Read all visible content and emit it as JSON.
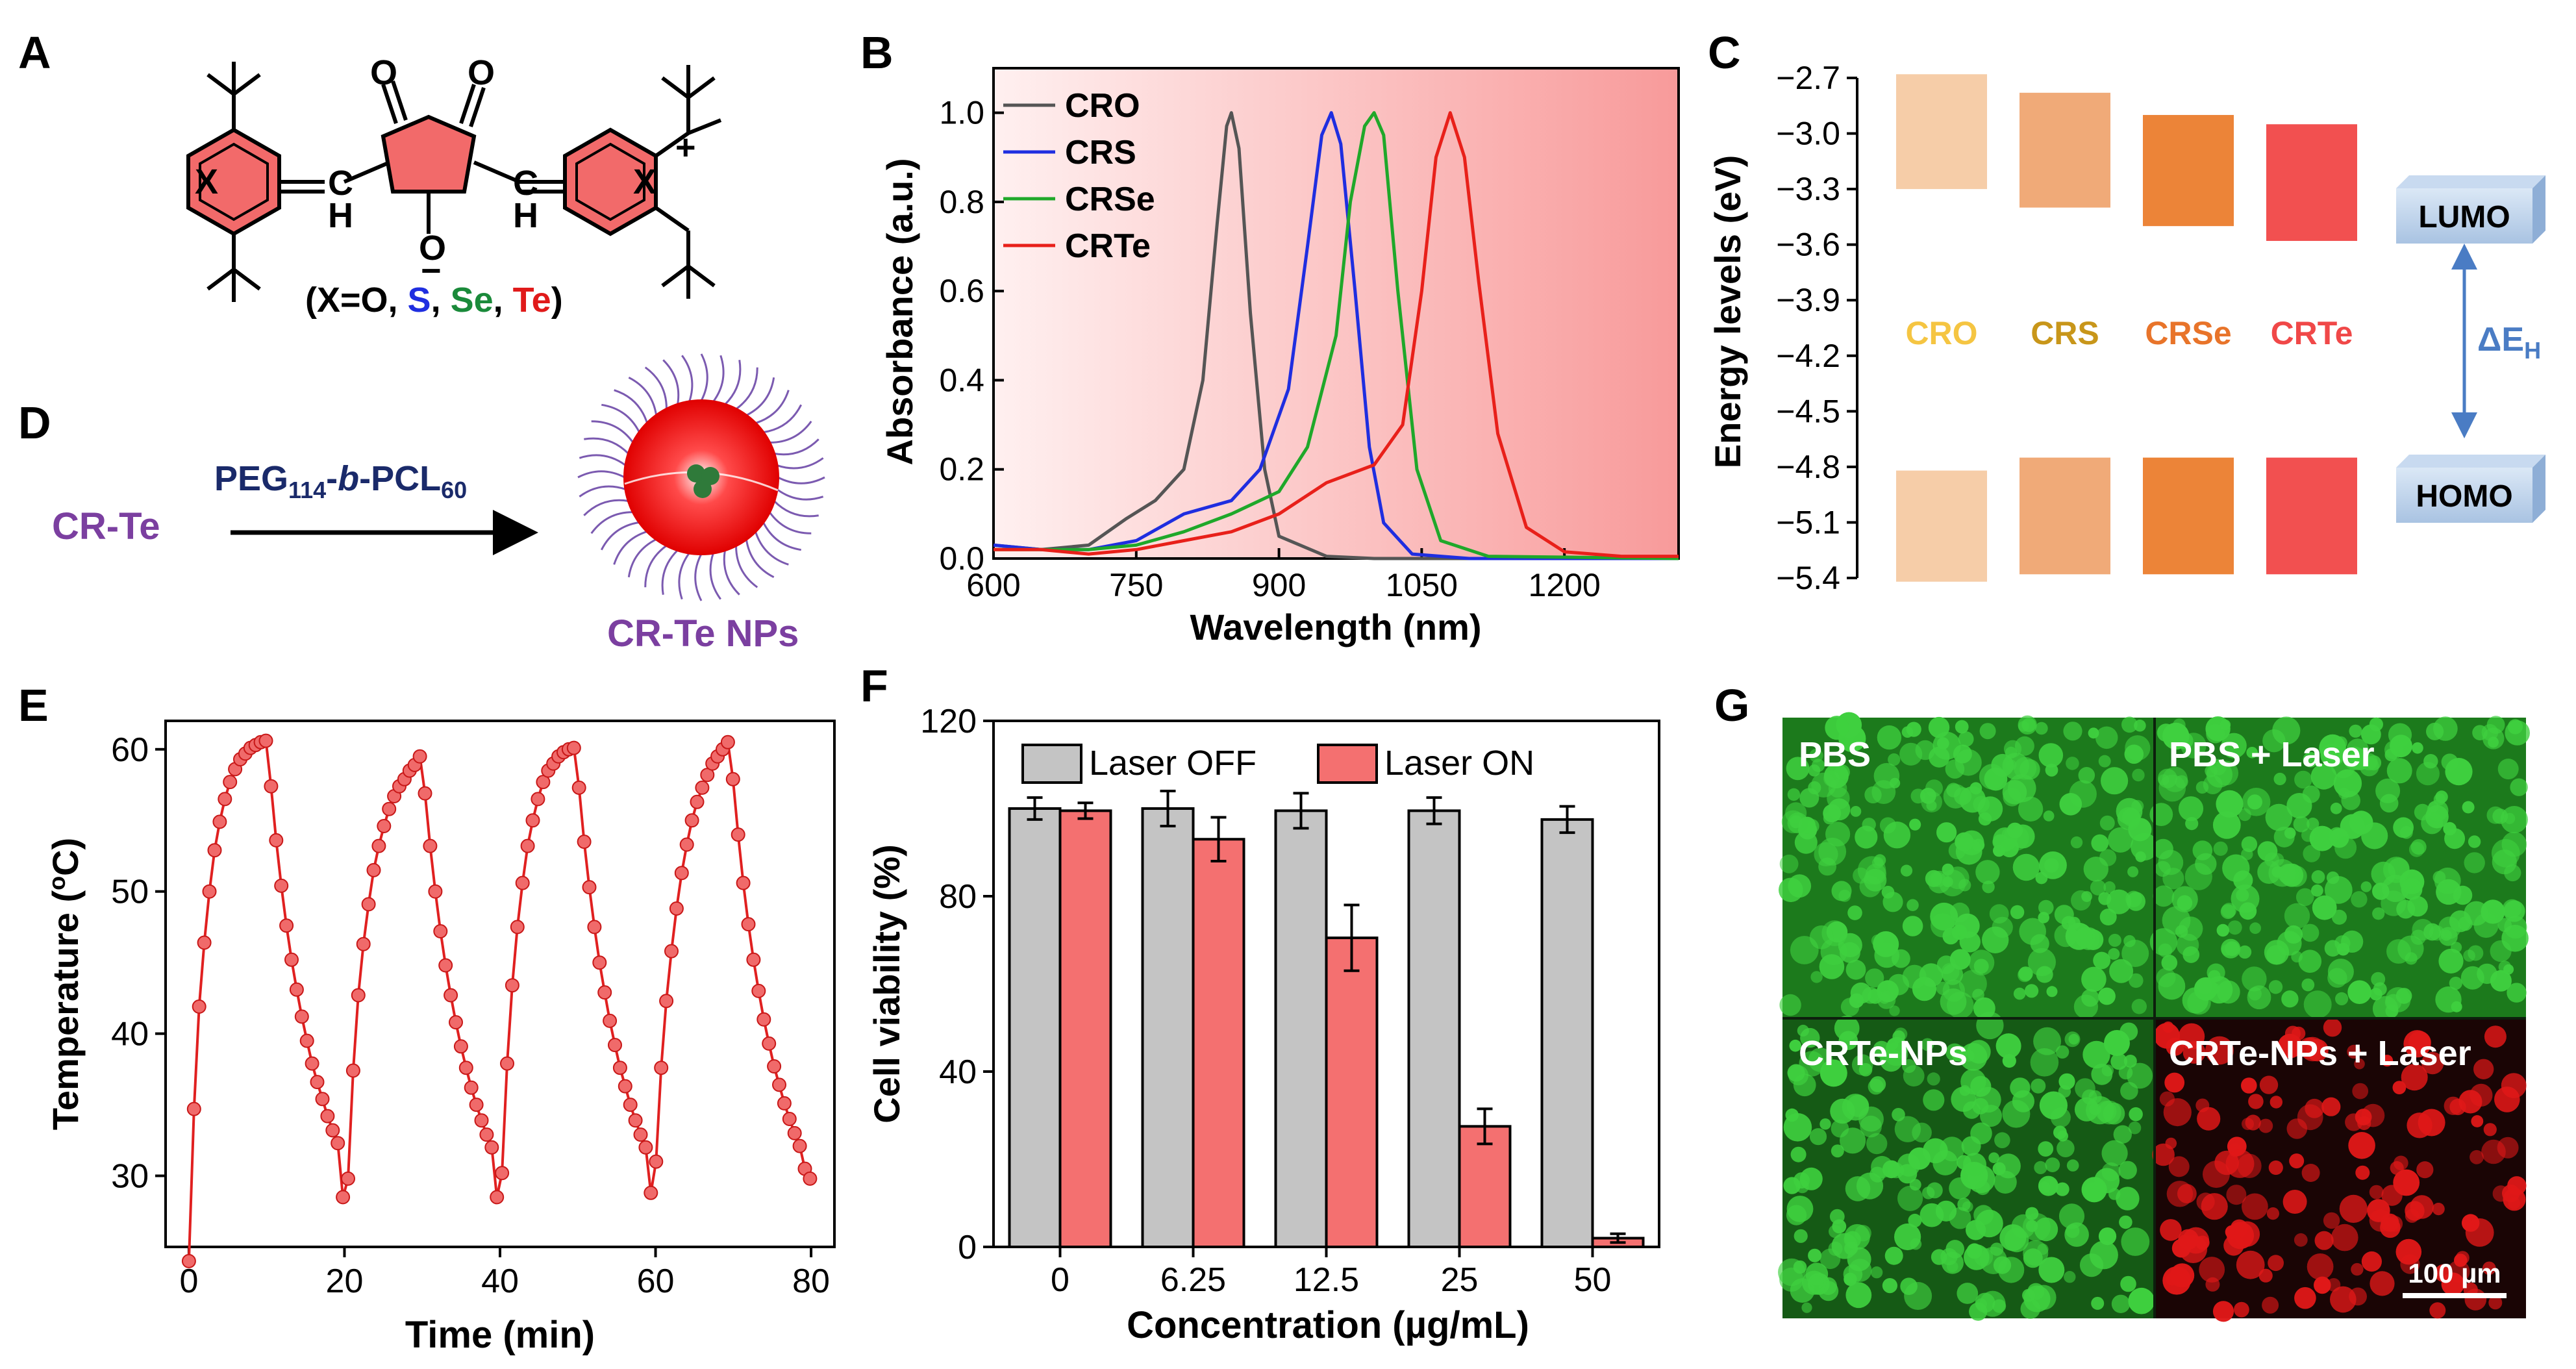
{
  "figure": {
    "panel_labels": [
      "A",
      "B",
      "C",
      "D",
      "E",
      "F",
      "G"
    ]
  },
  "panel_a": {
    "atom_X": "X",
    "atom_O": "O",
    "atom_H": "H",
    "atom_C": "C",
    "charge_plus": "+",
    "charge_minus": "−",
    "caption_open": "(X=O, ",
    "caption_S": "S",
    "caption_sep": ", ",
    "caption_Se": "Se",
    "caption_Te": "Te",
    "caption_close": ")",
    "colors": {
      "S": "#1f2ee0",
      "Se": "#1a8a3a",
      "Te": "#e01a1a"
    }
  },
  "panel_d": {
    "reactant": "CR-Te",
    "reagent_prefix": "PEG",
    "reagent_sub1": "114",
    "reagent_mid": "-",
    "reagent_b": "b",
    "reagent_mid2": "-PCL",
    "reagent_sub2": "60",
    "product": "CR-Te NPs",
    "colors": {
      "reactant": "#7b3fa0",
      "reagent": "#1a2a6a"
    }
  },
  "chart_data": [
    {
      "panel": "B",
      "type": "line",
      "title": "",
      "xlabel": "Wavelength (nm)",
      "ylabel": "Absorbance (a.u.)",
      "xlim": [
        600,
        1320
      ],
      "ylim": [
        0,
        1.1
      ],
      "xticks": [
        600,
        750,
        900,
        1050,
        1200
      ],
      "yticks": [
        0.0,
        0.2,
        0.4,
        0.6,
        0.8,
        1.0
      ],
      "ytick_labels": [
        "0.0",
        "0.2",
        "0.4",
        "0.6",
        "0.8",
        "1.0"
      ],
      "legend": "top-left",
      "series": [
        {
          "name": "CRO",
          "color": "#555555",
          "x": [
            600,
            650,
            700,
            740,
            770,
            800,
            820,
            835,
            845,
            850,
            858,
            870,
            885,
            900,
            950,
            1000,
            1100,
            1320
          ],
          "y": [
            0.03,
            0.02,
            0.03,
            0.09,
            0.13,
            0.2,
            0.4,
            0.75,
            0.97,
            1.0,
            0.92,
            0.55,
            0.2,
            0.05,
            0.005,
            0.0,
            0.0,
            0.0
          ]
        },
        {
          "name": "CRS",
          "color": "#1f2ee0",
          "x": [
            600,
            650,
            700,
            750,
            800,
            850,
            880,
            910,
            930,
            945,
            955,
            965,
            980,
            995,
            1010,
            1040,
            1100,
            1320
          ],
          "y": [
            0.03,
            0.02,
            0.02,
            0.04,
            0.1,
            0.13,
            0.2,
            0.38,
            0.7,
            0.95,
            1.0,
            0.93,
            0.6,
            0.25,
            0.08,
            0.01,
            0.0,
            0.0
          ]
        },
        {
          "name": "CRSe",
          "color": "#1fa82a",
          "x": [
            600,
            650,
            700,
            750,
            800,
            850,
            900,
            930,
            960,
            975,
            990,
            1000,
            1010,
            1025,
            1045,
            1070,
            1120,
            1320
          ],
          "y": [
            0.02,
            0.02,
            0.02,
            0.03,
            0.06,
            0.1,
            0.15,
            0.25,
            0.5,
            0.8,
            0.97,
            1.0,
            0.95,
            0.6,
            0.2,
            0.04,
            0.005,
            0.0
          ]
        },
        {
          "name": "CRTe",
          "color": "#e8201a",
          "x": [
            600,
            650,
            700,
            750,
            800,
            850,
            900,
            950,
            1000,
            1030,
            1050,
            1065,
            1080,
            1095,
            1110,
            1130,
            1160,
            1200,
            1260,
            1320
          ],
          "y": [
            0.02,
            0.02,
            0.01,
            0.02,
            0.04,
            0.06,
            0.1,
            0.17,
            0.21,
            0.3,
            0.6,
            0.9,
            1.0,
            0.9,
            0.62,
            0.28,
            0.07,
            0.015,
            0.005,
            0.005
          ]
        }
      ]
    },
    {
      "panel": "C",
      "type": "bar",
      "title": "",
      "xlabel": "",
      "ylabel": "Energy levels (eV)",
      "ylim": [
        -5.4,
        -2.7
      ],
      "yticks": [
        -2.7,
        -3.0,
        -3.3,
        -3.6,
        -3.9,
        -4.2,
        -4.5,
        -4.8,
        -5.1,
        -5.4
      ],
      "ytick_labels": [
        "−2.7",
        "−3.0",
        "−3.3",
        "−3.6",
        "−3.9",
        "−4.2",
        "−4.5",
        "−4.8",
        "−5.1",
        "−5.4"
      ],
      "categories": [
        "CRO",
        "CRS",
        "CRSe",
        "CRTe"
      ],
      "label_colors": [
        "#f5c542",
        "#c8961a",
        "#e8742a",
        "#f04848"
      ],
      "bar_colors": [
        "#f6cda8",
        "#f0aa78",
        "#ec8438",
        "#f25050"
      ],
      "lumo_ranges": [
        [
          -3.3,
          -2.68
        ],
        [
          -3.4,
          -2.78
        ],
        [
          -3.5,
          -2.9
        ],
        [
          -3.58,
          -2.95
        ]
      ],
      "homo_ranges": [
        [
          -5.42,
          -4.82
        ],
        [
          -5.38,
          -4.75
        ],
        [
          -5.38,
          -4.75
        ],
        [
          -5.38,
          -4.75
        ]
      ],
      "legend_labels": {
        "lumo": "LUMO",
        "homo": "HOMO",
        "gap": "ΔE",
        "gap_sub": "H"
      }
    },
    {
      "panel": "E",
      "type": "line",
      "title": "",
      "xlabel": "Time (min)",
      "ylabel": "Temperature (°C)",
      "ylabel_base": "Temperature (",
      "ylabel_sup": "o",
      "ylabel_tail": "C)",
      "xlim": [
        -3,
        83
      ],
      "ylim": [
        25,
        62
      ],
      "xticks": [
        0,
        20,
        40,
        60,
        80
      ],
      "yticks": [
        30,
        40,
        50,
        60
      ],
      "color": "#e02020",
      "x": [
        0,
        0.66,
        1.32,
        1.98,
        2.64,
        3.3,
        3.96,
        4.62,
        5.28,
        5.94,
        6.6,
        7.26,
        7.92,
        8.58,
        9.24,
        9.9,
        10.56,
        11.22,
        11.88,
        12.54,
        13.2,
        13.86,
        14.52,
        15.18,
        15.84,
        16.5,
        17.16,
        17.82,
        18.48,
        19.14,
        19.8,
        20.46,
        21.12,
        21.78,
        22.44,
        23.1,
        23.76,
        24.42,
        25.08,
        25.74,
        26.4,
        27.06,
        27.72,
        28.38,
        29.04,
        29.7,
        30.36,
        31.02,
        31.68,
        32.34,
        33,
        33.66,
        34.32,
        34.98,
        35.64,
        36.3,
        36.96,
        37.62,
        38.28,
        38.94,
        39.6,
        40.26,
        40.92,
        41.58,
        42.24,
        42.9,
        43.56,
        44.22,
        44.88,
        45.54,
        46.2,
        46.86,
        47.52,
        48.18,
        48.84,
        49.5,
        50.16,
        50.82,
        51.48,
        52.14,
        52.8,
        53.46,
        54.12,
        54.78,
        55.44,
        56.1,
        56.76,
        57.42,
        58.08,
        58.74,
        59.4,
        60.06,
        60.72,
        61.38,
        62.04,
        62.7,
        63.36,
        64.02,
        64.68,
        65.34,
        66,
        66.66,
        67.32,
        67.98,
        68.64,
        69.3,
        69.96,
        70.62,
        71.28,
        71.94,
        72.6,
        73.26,
        73.92,
        74.58,
        75.24,
        75.9,
        76.56,
        77.22,
        77.88,
        78.54,
        79.2,
        79.86
      ],
      "y": [
        24.0,
        34.7,
        41.9,
        46.4,
        50.0,
        52.9,
        54.9,
        56.5,
        57.7,
        58.6,
        59.3,
        59.7,
        60.1,
        60.3,
        60.5,
        60.6,
        57.4,
        53.6,
        50.4,
        47.6,
        45.2,
        43.1,
        41.2,
        39.5,
        37.9,
        36.6,
        35.4,
        34.2,
        33.2,
        32.3,
        28.5,
        29.8,
        37.4,
        42.7,
        46.3,
        49.1,
        51.5,
        53.2,
        54.6,
        55.8,
        56.7,
        57.4,
        57.9,
        58.5,
        58.9,
        59.5,
        56.9,
        53.2,
        50.0,
        47.2,
        44.8,
        42.7,
        40.8,
        39.1,
        37.6,
        36.2,
        35.0,
        33.9,
        32.9,
        32.0,
        28.5,
        30.2,
        37.9,
        43.4,
        47.5,
        50.6,
        53.2,
        55.0,
        56.5,
        57.7,
        58.5,
        59.0,
        59.5,
        59.8,
        60.0,
        60.1,
        57.3,
        53.5,
        50.3,
        47.5,
        45.0,
        42.9,
        40.9,
        39.2,
        37.6,
        36.3,
        35.0,
        33.9,
        32.9,
        32.0,
        28.8,
        31.0,
        37.6,
        42.3,
        45.8,
        48.8,
        51.3,
        53.3,
        55.0,
        56.3,
        57.3,
        58.2,
        59.0,
        59.5,
        60.0,
        60.5,
        57.9,
        54.0,
        50.6,
        47.7,
        45.2,
        43.0,
        41.0,
        39.3,
        37.7,
        36.4,
        35.1,
        34.0,
        33.0,
        32.1,
        30.5,
        29.8
      ]
    },
    {
      "panel": "F",
      "type": "bar",
      "title": "",
      "xlabel": "Concentration (µg/mL)",
      "ylabel": "Cell viability (%)",
      "ylim": [
        0,
        120
      ],
      "yticks": [
        0,
        40,
        80,
        120
      ],
      "categories": [
        "0",
        "6.25",
        "12.5",
        "25",
        "50"
      ],
      "legend": "top",
      "series": [
        {
          "name": "Laser OFF",
          "color": "#c4c4c4",
          "values": [
            100,
            100,
            99.5,
            99.5,
            97.5
          ],
          "errors": [
            2.5,
            4.0,
            4.0,
            3.0,
            3.0
          ]
        },
        {
          "name": "Laser ON",
          "color": "#f47070",
          "values": [
            99.5,
            93.0,
            70.5,
            27.5,
            2.0
          ],
          "errors": [
            1.8,
            5.0,
            7.5,
            4.0,
            1.0
          ]
        }
      ]
    }
  ],
  "panel_g": {
    "quadrants": [
      "PBS",
      "PBS + Laser",
      "CRTe-NPs",
      "CRTe-NPs + Laser"
    ],
    "scale_bar": "100 µm",
    "colors": {
      "live": "#3fd03f",
      "dead": "#e01818"
    }
  }
}
